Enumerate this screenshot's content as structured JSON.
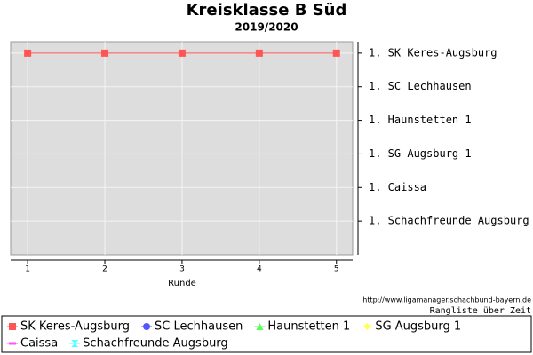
{
  "chart_data": {
    "type": "line",
    "title": "Kreisklasse B Süd",
    "subtitle": "2019/2020",
    "x_label": "Runde",
    "source": "http://www.ligamanager.schachbund-bayern.de",
    "caption": "Rangliste über Zeit",
    "x": [
      1,
      2,
      3,
      4,
      5
    ],
    "xlim": [
      0.78,
      5.21
    ],
    "xticks": [
      1,
      2,
      3,
      4,
      5
    ],
    "ylim": [
      7,
      0.66
    ],
    "yticks": [
      {
        "value": 1,
        "label": "1. SK Keres-Augsburg"
      },
      {
        "value": 2,
        "label": "1. SC Lechhausen"
      },
      {
        "value": 3,
        "label": "1. Haunstetten 1"
      },
      {
        "value": 4,
        "label": "1. SG Augsburg 1"
      },
      {
        "value": 5,
        "label": "1. Caissa"
      },
      {
        "value": 6,
        "label": "1. Schachfreunde Augsburg"
      }
    ],
    "y_axis_side": "right",
    "grid": true,
    "legend": "bottom",
    "series": [
      {
        "name": "SK Keres-Augsburg",
        "color": "#ff5555",
        "values": [
          1,
          1,
          1,
          1,
          1
        ]
      },
      {
        "name": "SC Lechhausen",
        "color": "#5555ff",
        "values": [
          null,
          null,
          null,
          null,
          null
        ]
      },
      {
        "name": "Haunstetten 1",
        "color": "#55ff55",
        "values": [
          null,
          null,
          null,
          null,
          null
        ]
      },
      {
        "name": "SG Augsburg 1",
        "color": "#ffff55",
        "values": [
          null,
          null,
          null,
          null,
          null
        ]
      },
      {
        "name": "Caissa",
        "color": "#ff55ff",
        "values": [
          null,
          null,
          null,
          null,
          null
        ]
      },
      {
        "name": "Schachfreunde Augsburg",
        "color": "#55ffff",
        "values": [
          null,
          null,
          null,
          null,
          null
        ]
      }
    ]
  }
}
